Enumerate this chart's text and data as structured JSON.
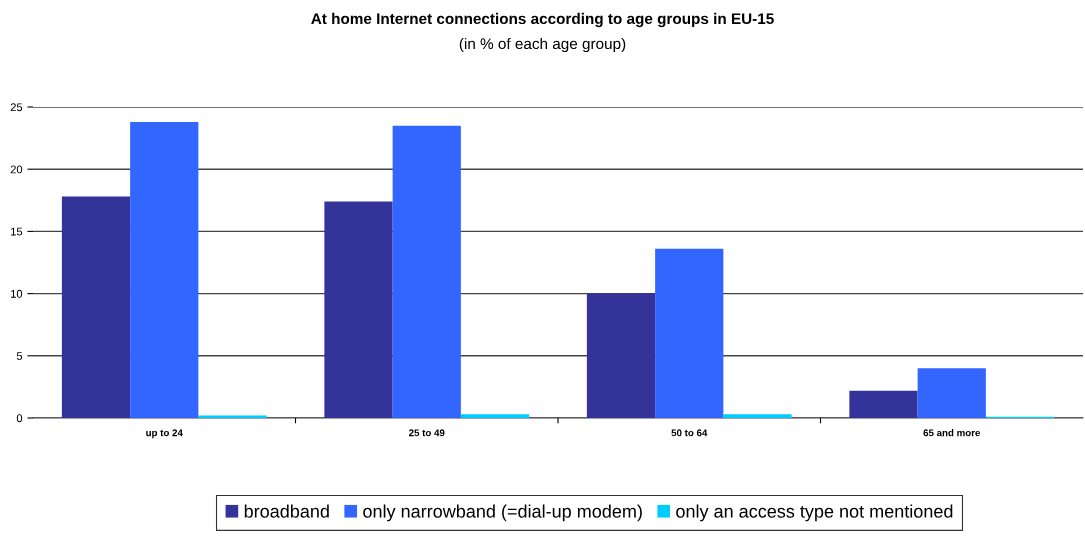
{
  "chart_data": {
    "type": "bar",
    "title": "At home Internet connections according to age groups in EU-15",
    "subtitle": "(in % of each age group)",
    "categories": [
      "up to 24",
      "25 to 49",
      "50 to 64",
      "65 and more"
    ],
    "series": [
      {
        "name": "broadband",
        "color": "#333399",
        "values": [
          17.8,
          17.4,
          10.0,
          2.2
        ]
      },
      {
        "name": "only narrowband (=dial-up modem)",
        "color": "#3366ff",
        "values": [
          23.8,
          23.5,
          13.6,
          4.0
        ]
      },
      {
        "name": "only an access type not mentioned",
        "color": "#00ccff",
        "values": [
          0.2,
          0.3,
          0.3,
          0.1
        ]
      }
    ],
    "ylim": [
      0,
      25
    ],
    "yticks": [
      0,
      5,
      10,
      15,
      20,
      25
    ],
    "grid": "y",
    "legend": "bottom"
  }
}
